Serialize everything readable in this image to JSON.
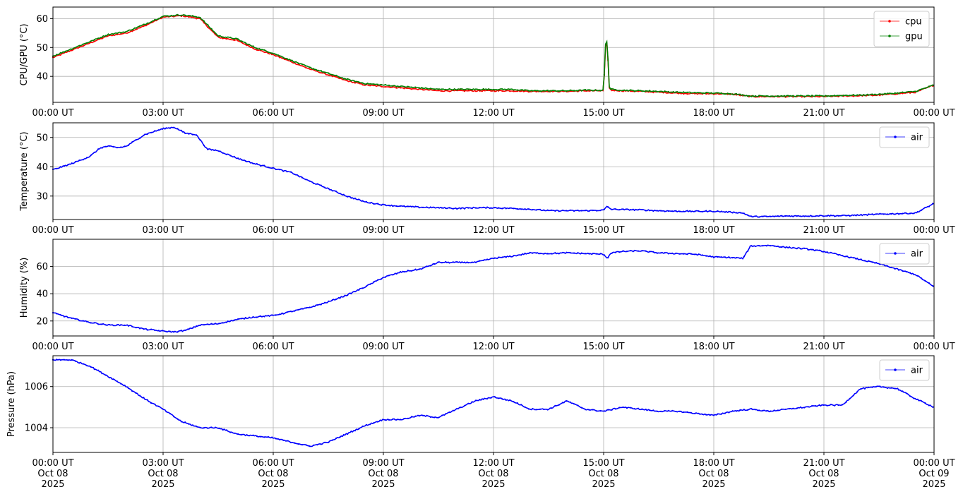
{
  "chart_data": [
    {
      "type": "line",
      "ylabel": "CPU/GPU (°C)",
      "xlim": [
        0,
        24
      ],
      "ylim": [
        31,
        64
      ],
      "yticks": [
        40,
        50,
        60
      ],
      "grid": true,
      "legend": "top-right",
      "x_tick_labels": [
        "00:00 UT",
        "03:00 UT",
        "06:00 UT",
        "09:00 UT",
        "12:00 UT",
        "15:00 UT",
        "18:00 UT",
        "21:00 UT",
        "00:00 UT"
      ],
      "series": [
        {
          "name": "cpu",
          "color": "#ff0000",
          "x": [
            0,
            0.5,
            1,
            1.5,
            2,
            2.5,
            3,
            3.5,
            4,
            4.5,
            5,
            5.5,
            6,
            6.5,
            7,
            7.5,
            8,
            8.5,
            9,
            9.5,
            10,
            10.5,
            11,
            11.5,
            12,
            12.5,
            13,
            13.5,
            14,
            14.5,
            15,
            15.05,
            15.1,
            15.15,
            15.2,
            15.5,
            16,
            16.5,
            17,
            17.5,
            18,
            18.5,
            19,
            19.5,
            20,
            20.5,
            21,
            21.5,
            22,
            22.5,
            23,
            23.5,
            24
          ],
          "y": [
            46.5,
            49,
            51.5,
            54,
            55,
            57.5,
            60.5,
            61,
            60,
            53.5,
            52.5,
            49.5,
            47.5,
            45,
            42.5,
            40.5,
            38.5,
            37,
            36.5,
            36,
            35.5,
            35,
            35,
            35,
            35,
            35,
            34.8,
            34.8,
            34.8,
            35,
            35,
            50,
            52,
            36,
            35.2,
            35,
            34.8,
            34.5,
            34.2,
            34,
            34,
            33.8,
            33,
            33,
            33,
            33,
            33,
            33.2,
            33.3,
            33.5,
            34,
            34.5,
            37
          ]
        },
        {
          "name": "gpu",
          "color": "#008000",
          "x": [
            0,
            0.5,
            1,
            1.5,
            2,
            2.5,
            3,
            3.5,
            4,
            4.5,
            5,
            5.5,
            6,
            6.5,
            7,
            7.5,
            8,
            8.5,
            9,
            9.5,
            10,
            10.5,
            11,
            11.5,
            12,
            12.5,
            13,
            13.5,
            14,
            14.5,
            15,
            15.05,
            15.1,
            15.15,
            15.2,
            15.5,
            16,
            16.5,
            17,
            17.5,
            18,
            18.5,
            19,
            19.5,
            20,
            20.5,
            21,
            21.5,
            22,
            22.5,
            23,
            23.5,
            24
          ],
          "y": [
            47,
            49.5,
            52,
            54.5,
            55.5,
            58,
            60.8,
            61.3,
            60.5,
            54,
            53,
            50,
            48,
            45.5,
            43,
            41,
            39,
            37.5,
            37,
            36.5,
            36,
            35.5,
            35.5,
            35.5,
            35.5,
            35.5,
            35,
            35,
            35,
            35.2,
            35.2,
            51,
            52.5,
            36.5,
            35.5,
            35.2,
            35,
            34.8,
            34.5,
            34.3,
            34.2,
            34,
            33.2,
            33.2,
            33.2,
            33.2,
            33.2,
            33.4,
            33.5,
            33.8,
            34.2,
            34.8,
            37
          ]
        }
      ]
    },
    {
      "type": "line",
      "ylabel": "Temperature (°C)",
      "xlim": [
        0,
        24
      ],
      "ylim": [
        22,
        55
      ],
      "yticks": [
        30,
        40,
        50
      ],
      "grid": true,
      "legend": "top-right",
      "x_tick_labels": [
        "00:00 UT",
        "03:00 UT",
        "06:00 UT",
        "09:00 UT",
        "12:00 UT",
        "15:00 UT",
        "18:00 UT",
        "21:00 UT",
        "00:00 UT"
      ],
      "series": [
        {
          "name": "air",
          "color": "#0000ff",
          "x": [
            0,
            0.5,
            1,
            1.3,
            1.5,
            1.8,
            2,
            2.5,
            3,
            3.3,
            3.6,
            3.9,
            4.2,
            4.5,
            5,
            5.5,
            6,
            6.5,
            7,
            7.5,
            8,
            8.5,
            9,
            9.5,
            10,
            10.5,
            11,
            11.5,
            12,
            12.5,
            13,
            13.5,
            14,
            14.5,
            15,
            15.1,
            15.2,
            15.5,
            16,
            16.5,
            17,
            17.5,
            18,
            18.5,
            18.8,
            19,
            19.5,
            20,
            20.5,
            21,
            21.5,
            22,
            22.5,
            23,
            23.5,
            24
          ],
          "y": [
            39,
            41,
            43.5,
            46.5,
            47,
            46.5,
            47,
            51,
            53,
            53.5,
            51.5,
            51,
            46,
            45.5,
            43,
            41,
            39.5,
            38,
            35,
            32.5,
            30,
            28,
            27,
            26.5,
            26.2,
            26,
            25.8,
            26,
            26,
            25.8,
            25.5,
            25,
            25,
            25,
            25.2,
            26.5,
            25.5,
            25.4,
            25.3,
            25,
            24.8,
            24.8,
            24.8,
            24.5,
            24.2,
            23,
            23,
            23.2,
            23.2,
            23.3,
            23.3,
            23.5,
            23.8,
            24,
            24.2,
            27.5
          ]
        }
      ]
    },
    {
      "type": "line",
      "ylabel": "Humidity (%)",
      "xlim": [
        0,
        24
      ],
      "ylim": [
        9,
        80
      ],
      "yticks": [
        20,
        40,
        60
      ],
      "grid": true,
      "legend": "top-right",
      "x_tick_labels": [
        "00:00 UT",
        "03:00 UT",
        "06:00 UT",
        "09:00 UT",
        "12:00 UT",
        "15:00 UT",
        "18:00 UT",
        "21:00 UT",
        "00:00 UT"
      ],
      "series": [
        {
          "name": "air",
          "color": "#0000ff",
          "x": [
            0,
            0.5,
            1,
            1.5,
            2,
            2.5,
            3,
            3.3,
            3.6,
            4,
            4.5,
            5,
            5.5,
            6,
            6.5,
            7,
            7.5,
            8,
            8.5,
            9,
            9.5,
            10,
            10.5,
            11,
            11.5,
            12,
            12.5,
            13,
            13.5,
            14,
            14.5,
            15,
            15.1,
            15.2,
            15.5,
            16,
            16.5,
            17,
            17.5,
            18,
            18.5,
            18.8,
            19,
            19.5,
            20,
            20.5,
            21,
            21.5,
            22,
            22.5,
            23,
            23.5,
            24
          ],
          "y": [
            26,
            22,
            19,
            17,
            17,
            14,
            12.5,
            12,
            13,
            17,
            18,
            21,
            23,
            24,
            27,
            30,
            34,
            39,
            45,
            52,
            56,
            58,
            63,
            63,
            63,
            66,
            67.5,
            70,
            69.5,
            70,
            69.5,
            69,
            66,
            70,
            71,
            71.5,
            70,
            69.5,
            69,
            67,
            66.5,
            66,
            75,
            75.5,
            74,
            73,
            71,
            68,
            65,
            62,
            58,
            54,
            45
          ]
        }
      ]
    },
    {
      "type": "line",
      "ylabel": "Pressure (hPa)",
      "xlim": [
        0,
        24
      ],
      "ylim": [
        1002.8,
        1007.5
      ],
      "yticks": [
        1004,
        1006
      ],
      "grid": true,
      "legend": "top-right",
      "x_tick_labels": [
        "00:00 UT\nOct 08\n2025",
        "03:00 UT\nOct 08\n2025",
        "06:00 UT\nOct 08\n2025",
        "09:00 UT\nOct 08\n2025",
        "12:00 UT\nOct 08\n2025",
        "15:00 UT\nOct 08\n2025",
        "18:00 UT\nOct 08\n2025",
        "21:00 UT\nOct 08\n2025",
        "00:00 UT\nOct 09\n2025"
      ],
      "series": [
        {
          "name": "air",
          "color": "#0000ff",
          "x": [
            0,
            0.5,
            1,
            1.5,
            2,
            2.5,
            3,
            3.5,
            4,
            4.5,
            5,
            5.5,
            6,
            6.5,
            7,
            7.5,
            8,
            8.5,
            9,
            9.5,
            10,
            10.5,
            11,
            11.5,
            12,
            12.5,
            13,
            13.5,
            14,
            14.5,
            15,
            15.5,
            16,
            16.5,
            17,
            17.5,
            18,
            18.5,
            19,
            19.5,
            20,
            20.5,
            21,
            21.5,
            22,
            22.5,
            23,
            23.5,
            24
          ],
          "y": [
            1007.3,
            1007.3,
            1007,
            1006.5,
            1006,
            1005.4,
            1004.9,
            1004.3,
            1004,
            1004,
            1003.7,
            1003.6,
            1003.5,
            1003.3,
            1003.1,
            1003.3,
            1003.7,
            1004.1,
            1004.4,
            1004.4,
            1004.6,
            1004.5,
            1004.9,
            1005.3,
            1005.5,
            1005.3,
            1004.9,
            1004.9,
            1005.3,
            1004.9,
            1004.8,
            1005,
            1004.9,
            1004.8,
            1004.8,
            1004.7,
            1004.6,
            1004.8,
            1004.9,
            1004.8,
            1004.9,
            1005,
            1005.1,
            1005.1,
            1005.9,
            1006,
            1005.9,
            1005.4,
            1005
          ]
        }
      ]
    }
  ]
}
